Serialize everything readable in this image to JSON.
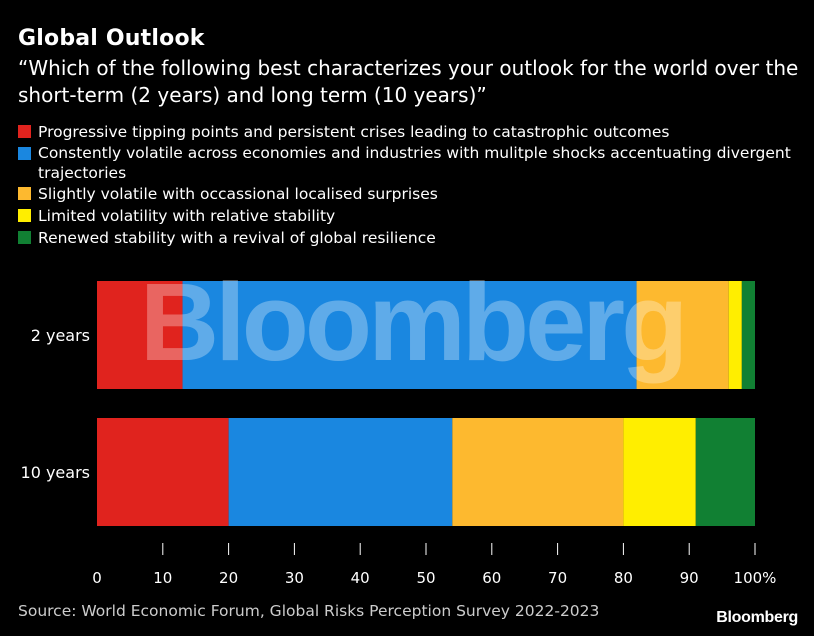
{
  "title": "Global Outlook",
  "subtitle": "“Which of the following best characterizes your outlook for the world over the short-term (2 years) and long term (10 years)”",
  "watermark": "Bloomberg",
  "source": "Source: World Economic Forum, Global Risks Perception Survey 2022-2023",
  "brand": "Bloomberg",
  "colors": {
    "background": "#000000",
    "text": "#ffffff",
    "watermark": "#ffffff"
  },
  "chart_data": {
    "type": "bar",
    "orientation": "horizontal",
    "stacked": true,
    "categories": [
      "2 years",
      "10 years"
    ],
    "series": [
      {
        "name": "Progressive tipping points and persistent crises leading to catastrophic outcomes",
        "color": "#e0231e",
        "values": [
          13,
          20
        ]
      },
      {
        "name": "Constently volatile across economies and industries with mulitple shocks accentuating divergent trajectories",
        "color": "#1a87e0",
        "values": [
          69,
          34
        ]
      },
      {
        "name": "Slightly volatile with occassional localised surprises",
        "color": "#fdb92f",
        "values": [
          14,
          26
        ]
      },
      {
        "name": "Limited volatility with relative stability",
        "color": "#ffee00",
        "values": [
          2,
          11
        ]
      },
      {
        "name": "Renewed stability with a revival of global resilience",
        "color": "#118033",
        "values": [
          2,
          9
        ]
      }
    ],
    "xlim": [
      0,
      100
    ],
    "xticks": [
      0,
      10,
      20,
      30,
      40,
      50,
      60,
      70,
      80,
      90,
      100
    ],
    "xtick_labels": [
      "0",
      "10",
      "20",
      "30",
      "40",
      "50",
      "60",
      "70",
      "80",
      "90",
      "100%"
    ],
    "legend_position": "top",
    "grid": false
  }
}
